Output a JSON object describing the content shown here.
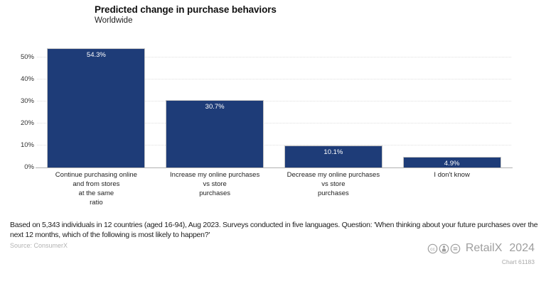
{
  "header": {
    "title": "Predicted change in purchase behaviors",
    "subtitle": "Worldwide"
  },
  "chart_data": {
    "type": "bar",
    "title": "Predicted change in purchase behaviors",
    "subtitle": "Worldwide",
    "categories": [
      "Continue purchasing online\nand from stores\nat the same\nratio",
      "Increase my online purchases\nvs store\npurchases",
      "Decrease my online purchases\nvs store\npurchases",
      "I don't know"
    ],
    "values": [
      54.3,
      30.7,
      10.1,
      4.9
    ],
    "value_labels": [
      "54.3%",
      "30.7%",
      "10.1%",
      "4.9%"
    ],
    "y_ticks": [
      "0%",
      "10%",
      "20%",
      "30%",
      "40%",
      "50%"
    ],
    "y_tick_values": [
      0,
      10,
      20,
      30,
      40,
      50
    ],
    "ylim": [
      0,
      55
    ],
    "ylabel": "",
    "xlabel": "",
    "grid": true,
    "legend": false,
    "bar_color": "#1e3c78",
    "value_label_color": "#ffffff",
    "gridline_color": "#dedede"
  },
  "footer": {
    "note": "Based on 5,343 individuals in 12 countries (aged 16-94), Aug 2023. Surveys conducted in five languages. Question: 'When thinking about your future purchases over the next 12 months, which of the following is most likely to happen?'",
    "source": "Source: ConsumerX"
  },
  "branding": {
    "logo_text": "RetailX",
    "year": "2024",
    "chart_id": "Chart 61183",
    "cc_icons": [
      "cc-icon",
      "attribution-icon",
      "no-derivatives-icon"
    ],
    "gray": "#9e9e9e"
  }
}
